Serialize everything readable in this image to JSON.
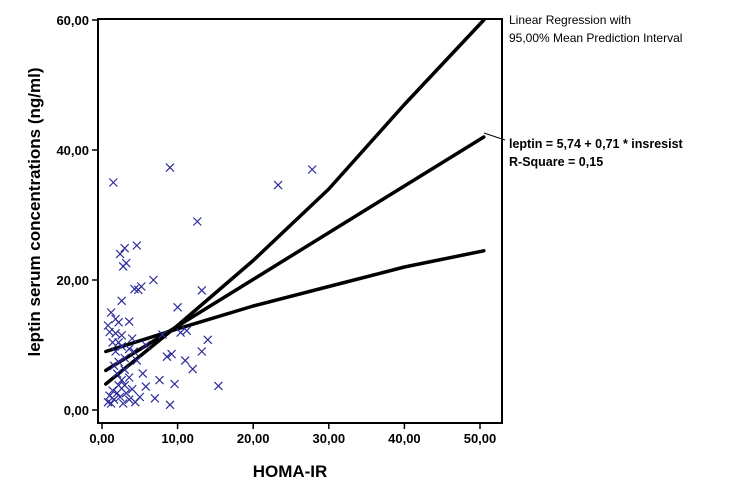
{
  "chart_data": {
    "type": "scatter",
    "xlabel": "HOMA-IR",
    "ylabel": "leptin serum concentrations (ng/ml)",
    "xlim": [
      0,
      50
    ],
    "ylim": [
      0,
      60
    ],
    "x_ticks": [
      "0,00",
      "10,00",
      "20,00",
      "30,00",
      "40,00",
      "50,00"
    ],
    "y_ticks": [
      "0,00",
      "20,00",
      "40,00",
      "60,00"
    ],
    "x_tick_values": [
      0,
      10,
      20,
      30,
      40,
      50
    ],
    "y_tick_values": [
      0,
      20,
      40,
      60
    ],
    "legend_title": [
      "Linear Regression with",
      "95,00% Mean Prediction Interval"
    ],
    "equation": "leptin = 5,74 + 0,71 * insresist",
    "r_square": "R-Square = 0,15",
    "marker_color": "#2b2b9b",
    "line_color": "#000000",
    "regression": {
      "fit": [
        [
          0.5,
          6.1
        ],
        [
          50.5,
          42.0
        ]
      ],
      "upper": [
        [
          0.5,
          4.0
        ],
        [
          10,
          13
        ],
        [
          20,
          23
        ],
        [
          30,
          34
        ],
        [
          40,
          47
        ],
        [
          50.5,
          60.0
        ]
      ],
      "lower": [
        [
          0.5,
          9.0
        ],
        [
          10,
          12.5
        ],
        [
          20,
          16
        ],
        [
          30,
          19
        ],
        [
          40,
          22
        ],
        [
          50.5,
          24.5
        ]
      ]
    },
    "points": [
      [
        1.5,
        35.0
      ],
      [
        9.0,
        37.3
      ],
      [
        23.3,
        34.6
      ],
      [
        27.8,
        37.0
      ],
      [
        12.6,
        29.0
      ],
      [
        4.6,
        25.3
      ],
      [
        3.0,
        24.9
      ],
      [
        2.4,
        24.0
      ],
      [
        3.2,
        22.6
      ],
      [
        2.8,
        22.1
      ],
      [
        6.8,
        20.0
      ],
      [
        5.2,
        19.0
      ],
      [
        4.8,
        18.5
      ],
      [
        4.3,
        18.6
      ],
      [
        13.2,
        18.4
      ],
      [
        2.6,
        16.8
      ],
      [
        10.0,
        15.8
      ],
      [
        1.2,
        15.0
      ],
      [
        0.8,
        13.0
      ],
      [
        1.8,
        14.0
      ],
      [
        2.2,
        13.5
      ],
      [
        3.6,
        13.6
      ],
      [
        1.0,
        12.0
      ],
      [
        1.8,
        11.8
      ],
      [
        2.6,
        11.5
      ],
      [
        4.0,
        11.0
      ],
      [
        8.0,
        11.6
      ],
      [
        10.4,
        11.9
      ],
      [
        11.2,
        12.2
      ],
      [
        14.0,
        10.8
      ],
      [
        1.4,
        10.4
      ],
      [
        2.2,
        10.4
      ],
      [
        2.6,
        9.8
      ],
      [
        3.6,
        9.4
      ],
      [
        5.8,
        10.0
      ],
      [
        4.2,
        9.0
      ],
      [
        1.8,
        9.0
      ],
      [
        9.2,
        8.6
      ],
      [
        8.6,
        8.2
      ],
      [
        11.0,
        7.6
      ],
      [
        13.2,
        9.0
      ],
      [
        12.0,
        6.3
      ],
      [
        3.0,
        8.0
      ],
      [
        4.6,
        7.6
      ],
      [
        2.2,
        7.4
      ],
      [
        1.6,
        6.8
      ],
      [
        3.0,
        6.2
      ],
      [
        2.0,
        5.6
      ],
      [
        5.4,
        5.6
      ],
      [
        3.6,
        5.0
      ],
      [
        2.6,
        4.6
      ],
      [
        7.6,
        4.6
      ],
      [
        9.6,
        4.0
      ],
      [
        15.4,
        3.7
      ],
      [
        5.8,
        3.6
      ],
      [
        2.2,
        3.8
      ],
      [
        3.0,
        3.8
      ],
      [
        4.0,
        3.2
      ],
      [
        1.4,
        3.0
      ],
      [
        2.0,
        2.6
      ],
      [
        3.2,
        2.6
      ],
      [
        1.0,
        2.2
      ],
      [
        2.4,
        2.0
      ],
      [
        5.0,
        2.0
      ],
      [
        7.0,
        1.8
      ],
      [
        1.6,
        1.6
      ],
      [
        3.6,
        1.6
      ],
      [
        0.8,
        1.2
      ],
      [
        2.8,
        1.0
      ],
      [
        4.4,
        1.2
      ],
      [
        9.0,
        0.8
      ],
      [
        1.2,
        1.0
      ]
    ]
  }
}
